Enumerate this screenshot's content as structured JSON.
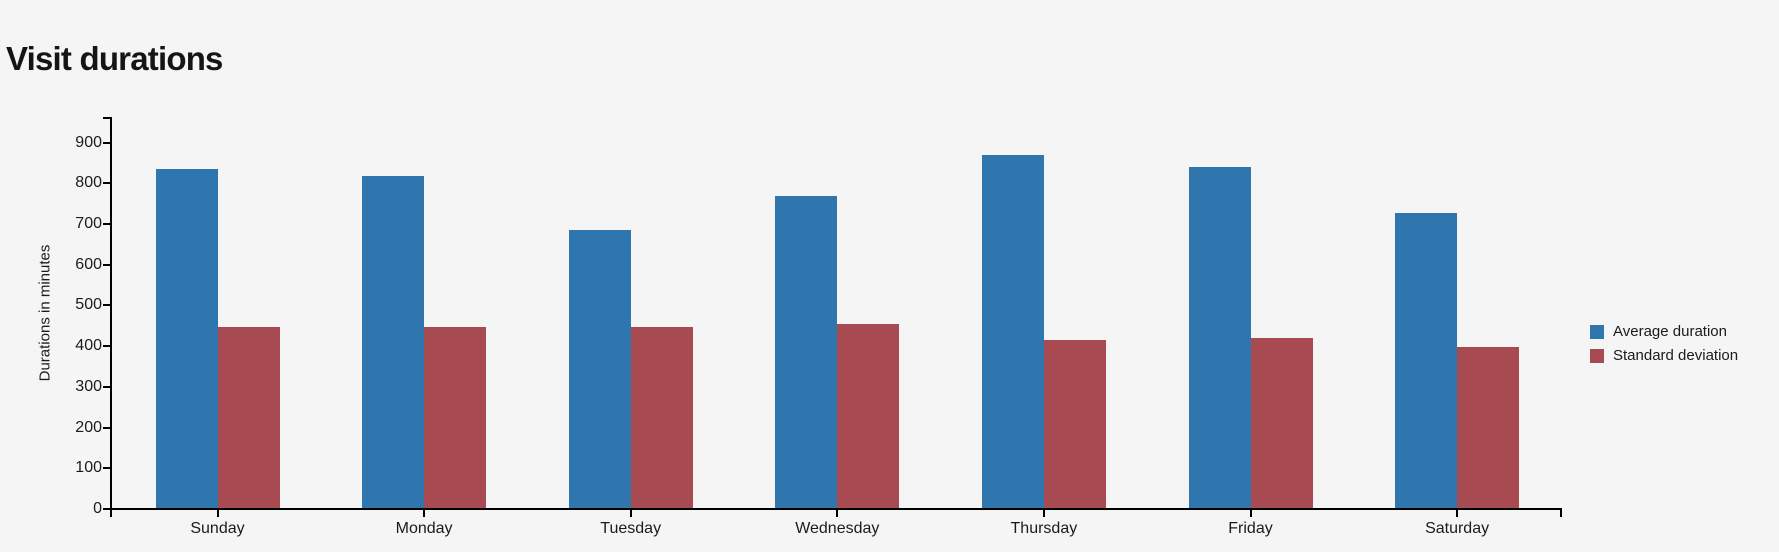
{
  "page": {
    "title": "Visit durations",
    "background_color": "#f5f5f5",
    "text_color": "#1b1b1b",
    "axis_color": "#000000"
  },
  "chart_data": {
    "type": "bar",
    "title": "Visit durations",
    "categories": [
      "Sunday",
      "Monday",
      "Tuesday",
      "Wednesday",
      "Thursday",
      "Friday",
      "Saturday"
    ],
    "series": [
      {
        "name": "Average duration",
        "color": "#2E76AD",
        "values": [
          835,
          818,
          686,
          770,
          870,
          840,
          727
        ]
      },
      {
        "name": "Standard deviation",
        "color": "#A84A52",
        "values": [
          446,
          448,
          447,
          454,
          415,
          420,
          397
        ]
      }
    ],
    "xlabel": "",
    "ylabel": "Durations in minutes",
    "ylim": [
      0,
      960
    ],
    "yticks": [
      0,
      100,
      200,
      300,
      400,
      500,
      600,
      700,
      800,
      900
    ],
    "grid": false,
    "legend_position": "right"
  }
}
